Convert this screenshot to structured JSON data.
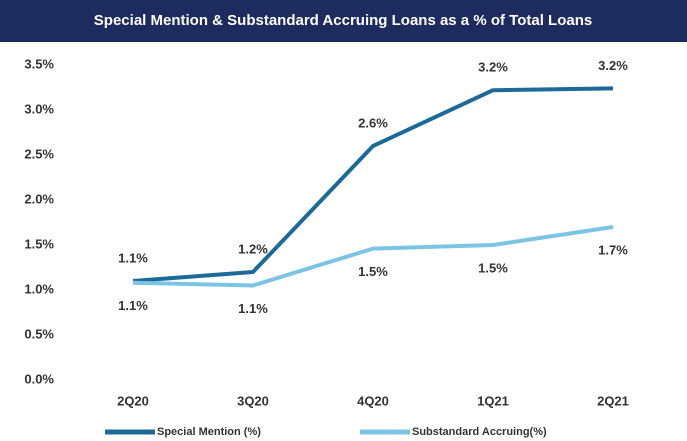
{
  "chart_data": {
    "type": "line",
    "title": "Special Mention & Substandard Accruing Loans as a % of Total Loans",
    "categories": [
      "2Q20",
      "3Q20",
      "4Q20",
      "1Q21",
      "2Q21"
    ],
    "series": [
      {
        "name": "Special Mention (%)",
        "color": "#1c6a98",
        "values": [
          1.1,
          1.2,
          2.6,
          3.22,
          3.24
        ],
        "value_labels": [
          "1.1%",
          "1.2%",
          "2.6%",
          "3.2%",
          "3.2%"
        ]
      },
      {
        "name": "Substandard Accruing(%)",
        "color": "#7cc4e4",
        "values": [
          1.08,
          1.05,
          1.46,
          1.5,
          1.7
        ],
        "value_labels": [
          "1.1%",
          "1.1%",
          "1.5%",
          "1.5%",
          "1.7%"
        ]
      }
    ],
    "ylim": [
      0,
      3.5
    ],
    "yticks": [
      {
        "value": 0,
        "label": "0.0%"
      },
      {
        "value": 0.5,
        "label": "0.5%"
      },
      {
        "value": 1,
        "label": "1.0%"
      },
      {
        "value": 1.5,
        "label": "1.5%"
      },
      {
        "value": 2,
        "label": "2.0%"
      },
      {
        "value": 2.5,
        "label": "2.5%"
      },
      {
        "value": 3,
        "label": "3.0%"
      },
      {
        "value": 3.5,
        "label": "3.5%"
      }
    ],
    "grid": false,
    "legend": "bottom"
  }
}
